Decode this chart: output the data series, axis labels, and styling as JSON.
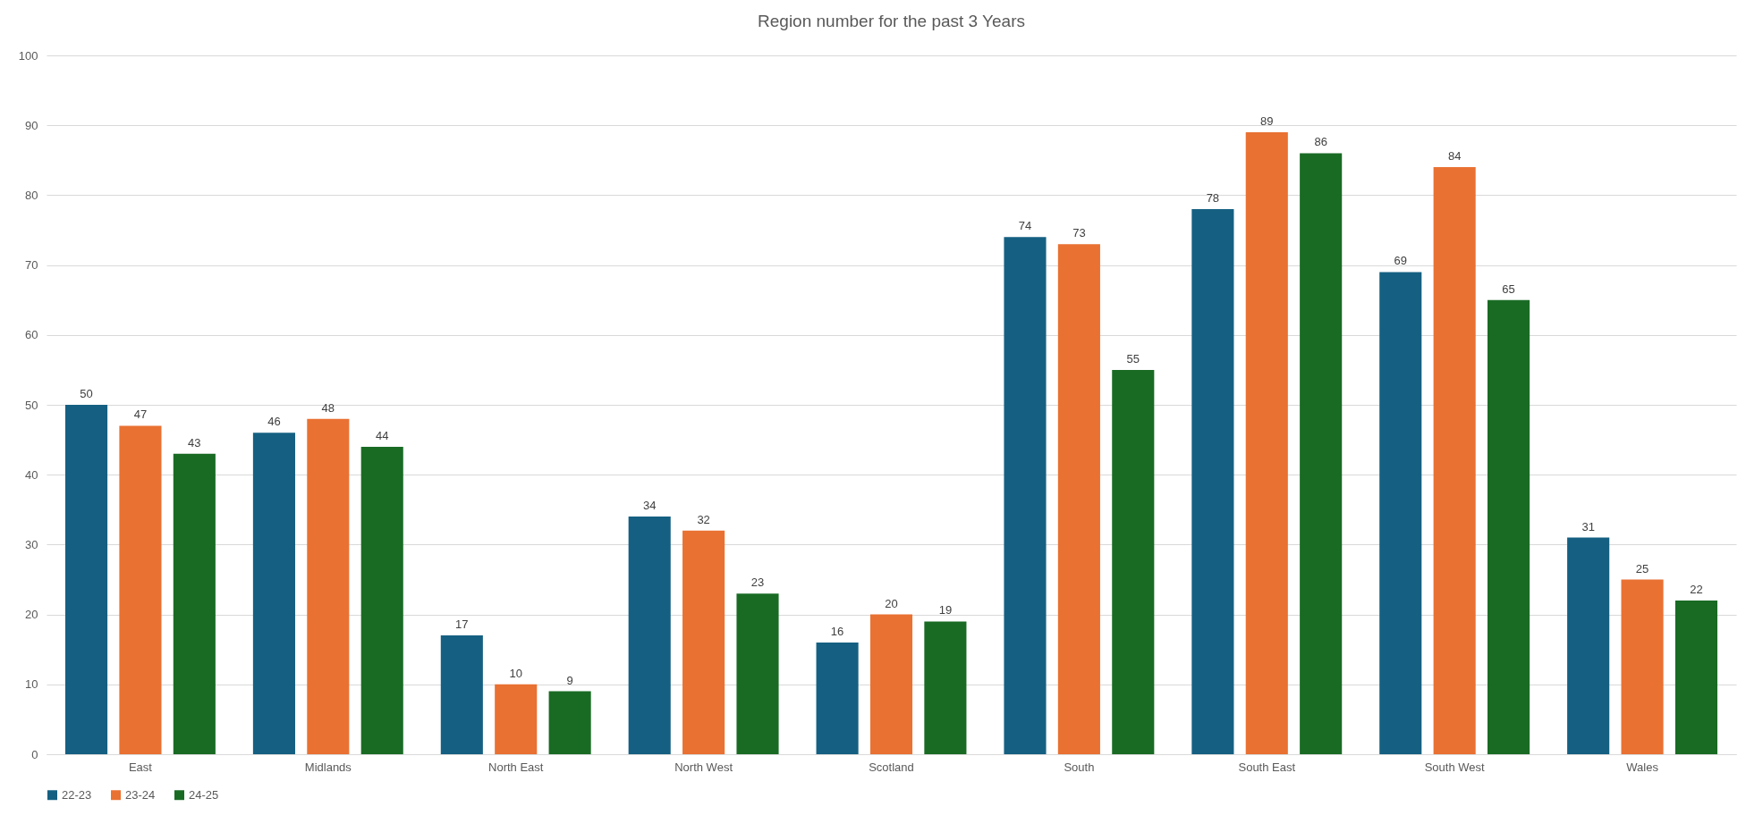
{
  "chart_data": {
    "type": "bar",
    "title": "Region number for the past 3 Years",
    "categories": [
      "East",
      "Midlands",
      "North East",
      "North West",
      "Scotland",
      "South",
      "South East",
      "South West",
      "Wales"
    ],
    "series": [
      {
        "name": "22-23",
        "color": "#156082",
        "values": [
          50,
          46,
          17,
          34,
          16,
          74,
          78,
          69,
          31
        ]
      },
      {
        "name": "23-24",
        "color": "#e97132",
        "values": [
          47,
          48,
          10,
          32,
          20,
          73,
          89,
          84,
          25
        ]
      },
      {
        "name": "24-25",
        "color": "#196b24",
        "values": [
          43,
          44,
          9,
          23,
          19,
          55,
          86,
          65,
          22
        ]
      }
    ],
    "ylim": [
      0,
      100
    ],
    "yticks": [
      0,
      10,
      20,
      30,
      40,
      50,
      60,
      70,
      80,
      90,
      100
    ],
    "grid": "y",
    "legend": "bottom",
    "data_labels": true
  }
}
